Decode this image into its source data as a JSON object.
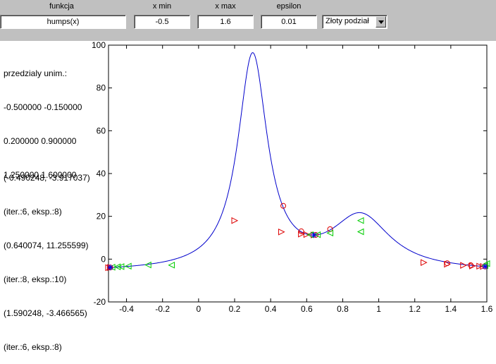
{
  "toolbar": {
    "funkcja_label": "funkcja",
    "xmin_label": "x min",
    "xmax_label": "x max",
    "epsilon_label": "epsilon",
    "funkcja_value": "humps(x)",
    "xmin_value": "-0.5",
    "xmax_value": "1.6",
    "epsilon_value": "0.01",
    "method_selected": "Złoty podział"
  },
  "info": {
    "intervals_title": "przedzialy unim.:",
    "intervals": [
      "-0.500000 -0.150000",
      "0.200000 0.900000",
      "1.250000 1.600000"
    ],
    "results": [
      "(-0.490248, -3.917037)",
      "(iter.:6, eksp.:8)",
      "(0.640074, 11.255599)",
      "(iter.:8, eksp.:10)",
      "(1.590248, -3.466565)",
      "(iter.:6, eksp.:8)"
    ]
  },
  "chart_data": {
    "type": "line",
    "xlim": [
      -0.5,
      1.6
    ],
    "ylim": [
      -20,
      100
    ],
    "xticks": [
      -0.4,
      -0.2,
      0,
      0.2,
      0.4,
      0.6,
      0.8,
      1,
      1.2,
      1.4,
      1.6
    ],
    "xtick_labels": [
      "-0.4",
      "-0.2",
      "0",
      "0.2",
      "0.4",
      "0.6",
      "0.8",
      "1",
      "1.2",
      "1.4",
      "1.6"
    ],
    "yticks": [
      -20,
      0,
      20,
      40,
      60,
      80,
      100
    ],
    "ytick_labels": [
      "-20",
      "0",
      "20",
      "40",
      "60",
      "80",
      "100"
    ],
    "curve": "humps(x)",
    "colors": {
      "curve": "#0000cc",
      "red": "#dd0000",
      "green": "#00cc00",
      "blue": "#0000ff"
    },
    "series": [
      {
        "marker": "circle",
        "color": "red",
        "points": [
          [
            -0.49,
            -3.9
          ],
          [
            0.47,
            24.9
          ],
          [
            0.57,
            13.0
          ],
          [
            0.65,
            11.3
          ],
          [
            0.73,
            14.0
          ],
          [
            1.38,
            -1.9
          ],
          [
            1.51,
            -2.8
          ],
          [
            1.59,
            -3.4
          ]
        ]
      },
      {
        "marker": "triangle-right",
        "color": "red",
        "points": [
          [
            -0.5,
            -4.0
          ],
          [
            -0.49,
            -3.9
          ],
          [
            0.2,
            18.0
          ],
          [
            0.46,
            12.7
          ],
          [
            0.57,
            11.7
          ],
          [
            0.6,
            11.5
          ],
          [
            0.64,
            11.3
          ],
          [
            1.25,
            -1.6
          ],
          [
            1.38,
            -2.4
          ],
          [
            1.47,
            -2.9
          ],
          [
            1.52,
            -3.2
          ],
          [
            1.56,
            -3.3
          ],
          [
            1.58,
            -3.4
          ]
        ]
      },
      {
        "marker": "triangle-left",
        "color": "green",
        "points": [
          [
            -0.48,
            -3.8
          ],
          [
            -0.45,
            -3.6
          ],
          [
            -0.43,
            -3.5
          ],
          [
            -0.39,
            -3.3
          ],
          [
            -0.28,
            -2.7
          ],
          [
            -0.15,
            -2.8
          ],
          [
            0.62,
            11.4
          ],
          [
            0.66,
            11.4
          ],
          [
            0.73,
            12.2
          ],
          [
            0.9,
            18.0
          ],
          [
            0.9,
            12.8
          ],
          [
            1.6,
            -2.1
          ],
          [
            1.59,
            -3.1
          ]
        ]
      },
      {
        "marker": "asterisk",
        "color": "blue",
        "points": [
          [
            -0.49,
            -3.9
          ],
          [
            0.64,
            11.26
          ],
          [
            1.59,
            -3.47
          ]
        ]
      }
    ]
  }
}
